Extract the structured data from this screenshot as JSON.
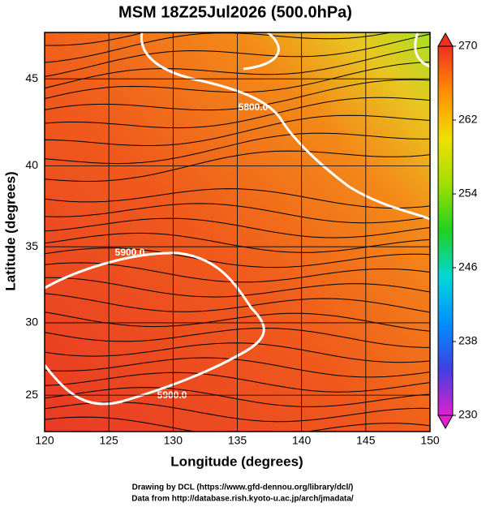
{
  "title": "MSM 18Z25Jul2026 (500.0hPa)",
  "x_axis": {
    "label": "Longitude (degrees)",
    "lim": [
      120,
      150
    ],
    "ticks": [
      120,
      125,
      130,
      135,
      140,
      145,
      150
    ]
  },
  "y_axis": {
    "label": "Latitude  (degrees)",
    "lim": [
      22.4,
      47.5
    ],
    "ticks": [
      25,
      30,
      35,
      40,
      45
    ],
    "projection": "mercator"
  },
  "colorbar": {
    "lim": [
      230,
      270
    ],
    "ticks": [
      230,
      238,
      246,
      254,
      262,
      270
    ],
    "colors": [
      "#e020d0",
      "#4040e0",
      "#0090ff",
      "#00d8d8",
      "#20d020",
      "#a0e000",
      "#f0e000",
      "#ff9000",
      "#f03020"
    ]
  },
  "contour_labels": [
    "5800.0",
    "5900.0",
    "5900.0"
  ],
  "credits": [
    "Drawing by DCL (https://www.gfd-dennou.org/library/dcl/)",
    "Data from http://database.rish.kyoto-u.ac.jp/arch/jmadata/"
  ]
}
